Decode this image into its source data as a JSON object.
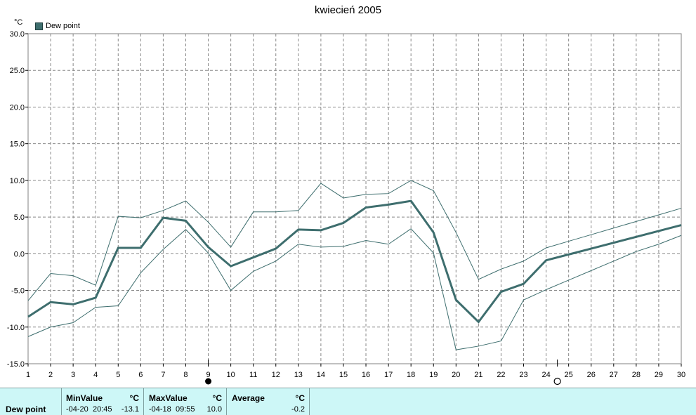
{
  "chart_data": {
    "type": "line",
    "title": "kwiecień 2005",
    "yunit": "°C",
    "ylim": [
      -15,
      30
    ],
    "yticks": [
      "30.0",
      "25.0",
      "20.0",
      "15.0",
      "10.0",
      "5.0",
      "0.0",
      "-5.0",
      "-10.0",
      "-15.0"
    ],
    "ytick_values": [
      30,
      25,
      20,
      15,
      10,
      5,
      0,
      -5,
      -10,
      -15
    ],
    "xlim": [
      1,
      30
    ],
    "x": [
      1,
      2,
      3,
      4,
      5,
      6,
      7,
      8,
      9,
      10,
      11,
      12,
      13,
      14,
      15,
      16,
      17,
      18,
      19,
      20,
      21,
      22,
      23,
      24,
      25,
      26,
      27,
      28,
      29,
      30
    ],
    "xticks": [
      "1",
      "2",
      "3",
      "4",
      "5",
      "6",
      "7",
      "8",
      "9",
      "10",
      "11",
      "12",
      "13",
      "14",
      "15",
      "16",
      "17",
      "18",
      "19",
      "20",
      "21",
      "22",
      "23",
      "24",
      "25",
      "26",
      "27",
      "28",
      "29",
      "30"
    ],
    "legend": "top-left",
    "grid": true,
    "series": [
      {
        "name": "Dew point",
        "role": "avg",
        "values": [
          -8.6,
          -6.6,
          -6.9,
          -6.0,
          0.8,
          0.8,
          4.9,
          4.5,
          0.9,
          -1.7,
          -0.5,
          0.7,
          3.3,
          3.2,
          4.2,
          6.3,
          6.7,
          7.2,
          2.9,
          -6.3,
          -9.3,
          -5.2,
          -4.1,
          -0.9,
          -0.1,
          0.7,
          1.5,
          2.3,
          3.1,
          3.9
        ]
      },
      {
        "role": "max",
        "values": [
          -6.4,
          -2.7,
          -3.0,
          -4.3,
          5.1,
          4.9,
          5.9,
          7.2,
          4.3,
          0.9,
          5.7,
          5.7,
          5.9,
          9.6,
          7.6,
          8.1,
          8.2,
          10.0,
          8.6,
          2.9,
          -3.5,
          -2.1,
          -1.0,
          0.8,
          1.7,
          2.6,
          3.5,
          4.4,
          5.3,
          6.2
        ]
      },
      {
        "role": "min",
        "values": [
          -11.3,
          -10.0,
          -9.4,
          -7.3,
          -7.1,
          -2.6,
          0.6,
          3.3,
          0.1,
          -5.0,
          -2.4,
          -1.0,
          1.3,
          0.9,
          1.0,
          1.8,
          1.3,
          3.4,
          0.1,
          -13.1,
          -12.6,
          -11.9,
          -6.3,
          -4.9,
          -3.6,
          -2.3,
          -1.0,
          0.3,
          1.3,
          2.5
        ]
      }
    ],
    "markers": {
      "filled_circle_x": 9,
      "open_circle_x": 24.5
    },
    "colors": {
      "line": "#3e6e6e",
      "grid": "#888888",
      "stats_bg": "#cdf7f7"
    }
  },
  "stats": {
    "row_label": "Dew point",
    "min": {
      "header": "MinValue",
      "unit": "°C",
      "date": "-04-20",
      "time": "20:45",
      "value": "-13.1"
    },
    "max": {
      "header": "MaxValue",
      "unit": "°C",
      "date": "-04-18",
      "time": "09:55",
      "value": "10.0"
    },
    "avg": {
      "header": "Average",
      "unit": "°C",
      "value": "-0.2"
    }
  }
}
